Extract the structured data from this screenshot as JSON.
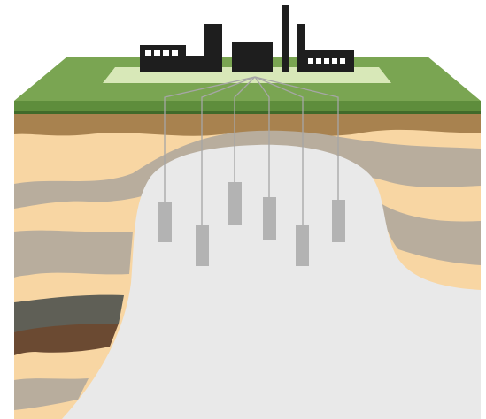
{
  "colors": {
    "background": "#ffffff",
    "grass_top": "#7aa552",
    "grass_side": "#5e8d3c",
    "grass_dark_band": "#3f6a2a",
    "pad": "#d8e8b8",
    "topsoil": "#a8824f",
    "sand": "#f8d6a3",
    "grey_layer": "#b8ad9d",
    "dark_grey_layer": "#5f5f56",
    "brown_layer": "#6b4a32",
    "salt_dome": "#e9e9e9",
    "building": "#1e1e1e",
    "window": "#ffffff",
    "pipe": "#a6a6a6",
    "cavern": "#b3b3b3"
  },
  "icons": [
    "factory-icon",
    "chimney-icon",
    "storage-cavern-icon"
  ],
  "facility": {
    "buildings": 4,
    "chimneys": 2,
    "caverns": 6
  }
}
